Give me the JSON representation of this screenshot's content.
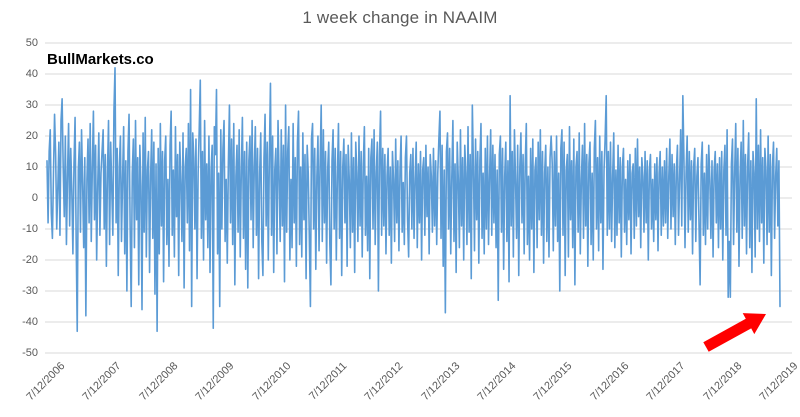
{
  "title": "1 week change in NAAIM",
  "watermark": "BullMarkets.co",
  "colors": {
    "background": "#FFFFFF",
    "series": "#5B9BD5",
    "grid": "#D9D9D9",
    "title_text": "#595959",
    "axis_text": "#595959",
    "watermark_text": "#000000",
    "arrow": "#FF0000"
  },
  "chart_data": {
    "type": "line",
    "title": "1 week change in NAAIM",
    "xlabel": "",
    "ylabel": "",
    "ylim": [
      -50,
      50
    ],
    "grid": true,
    "legend": false,
    "y_ticks": [
      50,
      40,
      30,
      20,
      10,
      0,
      -10,
      -20,
      -30,
      -40,
      -50
    ],
    "x_tick_labels": [
      "7/12/2006",
      "7/12/2007",
      "7/12/2008",
      "7/12/2009",
      "7/12/2010",
      "7/12/2011",
      "7/12/2012",
      "7/12/2013",
      "7/12/2014",
      "7/12/2015",
      "7/12/2016",
      "7/12/2017",
      "7/12/2018",
      "7/12/2019"
    ],
    "x_unit": "weeks",
    "annotation": {
      "shape": "block-arrow",
      "direction": "up-right",
      "color": "#FF0000",
      "points_to": "final week drop to about -35"
    },
    "values": [
      12,
      -8,
      15,
      22,
      -5,
      -13,
      8,
      27,
      14,
      -10,
      3,
      18,
      -12,
      25,
      32,
      10,
      -6,
      20,
      -15,
      7,
      24,
      -9,
      16,
      2,
      -18,
      11,
      26,
      -13,
      -43,
      9,
      18,
      -11,
      22,
      5,
      -16,
      13,
      -38,
      6,
      19,
      -8,
      24,
      -14,
      10,
      28,
      -7,
      17,
      -20,
      4,
      21,
      -12,
      8,
      15,
      22,
      -10,
      14,
      -22,
      8,
      25,
      -15,
      18,
      3,
      -12,
      28,
      42,
      -8,
      16,
      -25,
      10,
      20,
      -14,
      6,
      23,
      -18,
      12,
      -30,
      15,
      27,
      -9,
      -35,
      8,
      19,
      -16,
      25,
      -7,
      13,
      -28,
      17,
      4,
      -36,
      21,
      -11,
      26,
      -19,
      9,
      15,
      -24,
      7,
      22,
      -13,
      18,
      -31,
      11,
      -43,
      16,
      -18,
      24,
      -9,
      15,
      -27,
      12,
      20,
      -15,
      6,
      -22,
      17,
      28,
      -12,
      9,
      -19,
      23,
      -6,
      14,
      -25,
      18,
      5,
      -14,
      21,
      -29,
      10,
      16,
      -8,
      24,
      -17,
      35,
      -35,
      21,
      13,
      -10,
      19,
      -26,
      8,
      22,
      38,
      -13,
      15,
      -20,
      25,
      -7,
      11,
      -16,
      20,
      -24,
      9,
      17,
      -42,
      23,
      14,
      35,
      -18,
      8,
      -35,
      22,
      -10,
      16,
      25,
      -14,
      6,
      -21,
      11,
      30,
      -8,
      19,
      -15,
      24,
      -28,
      7,
      17,
      -11,
      22,
      -19,
      9,
      26,
      -13,
      15,
      -23,
      18,
      -29,
      12,
      20,
      -7,
      25,
      -16,
      10,
      23,
      -12,
      16,
      -26,
      8,
      21,
      -14,
      -25,
      13,
      27,
      -9,
      18,
      -20,
      14,
      37,
      -12,
      20,
      -24,
      9,
      16,
      -18,
      25,
      7,
      -14,
      22,
      -9,
      17,
      -27,
      30,
      -11,
      15,
      23,
      -20,
      6,
      -16,
      24,
      -8,
      13,
      -22,
      18,
      28,
      -15,
      10,
      -19,
      21,
      -7,
      14,
      -26,
      17,
      8,
      -13,
      -35,
      19,
      24,
      -10,
      16,
      -23,
      7,
      20,
      -17,
      11,
      30,
      -14,
      22,
      -8,
      15,
      -21,
      9,
      18,
      -15,
      -28,
      12,
      22,
      -10,
      16,
      -20,
      7,
      24,
      -13,
      15,
      -25,
      10,
      19,
      -8,
      14,
      -22,
      17,
      6,
      -16,
      21,
      -11,
      13,
      -24,
      18,
      8,
      -14,
      20,
      -9,
      15,
      -19,
      11,
      23,
      -12,
      7,
      -17,
      16,
      -26,
      13,
      19,
      -10,
      22,
      -15,
      8,
      18,
      -30,
      14,
      28,
      -12,
      16,
      -9,
      14,
      -18,
      7,
      16,
      -12,
      10,
      -21,
      15,
      6,
      -14,
      19,
      -8,
      12,
      -17,
      9,
      20,
      -11,
      5,
      -15,
      13,
      20,
      -7,
      -19,
      8,
      14,
      -10,
      16,
      -13,
      6,
      18,
      -16,
      11,
      -8,
      15,
      -20,
      9,
      13,
      -12,
      17,
      -6,
      10,
      -18,
      14,
      7,
      -11,
      16,
      -9,
      12,
      -15,
      8,
      19,
      28,
      -13,
      17,
      -22,
      9,
      -37,
      15,
      21,
      -10,
      16,
      -18,
      7,
      25,
      -14,
      11,
      -24,
      18,
      6,
      -16,
      22,
      -9,
      13,
      -20,
      17,
      8,
      -15,
      23,
      -11,
      14,
      -26,
      30,
      10,
      -17,
      19,
      -7,
      15,
      -21,
      12,
      24,
      -13,
      8,
      -18,
      16,
      -10,
      20,
      -15,
      7,
      22,
      -12,
      17,
      -8,
      14,
      -16,
      9,
      -33,
      14,
      20,
      -11,
      16,
      -23,
      7,
      18,
      -14,
      12,
      -27,
      33,
      -9,
      15,
      -19,
      22,
      6,
      -13,
      17,
      -25,
      10,
      21,
      -8,
      14,
      -18,
      11,
      24,
      -15,
      7,
      -20,
      16,
      -10,
      19,
      -24,
      9,
      13,
      -16,
      18,
      -7,
      22,
      -12,
      15,
      -21,
      8,
      17,
      -14,
      10,
      -19,
      13,
      20,
      11,
      -17,
      15,
      -9,
      20,
      -14,
      8,
      -30,
      16,
      22,
      -12,
      18,
      -25,
      9,
      14,
      -19,
      23,
      -7,
      12,
      -16,
      19,
      -28,
      10,
      15,
      -11,
      21,
      -18,
      6,
      17,
      -13,
      24,
      -9,
      14,
      -22,
      11,
      18,
      -15,
      8,
      -20,
      16,
      25,
      -10,
      13,
      -17,
      20,
      -8,
      15,
      -23,
      9,
      19,
      33,
      -12,
      15,
      -10,
      18,
      -14,
      7,
      21,
      -16,
      9,
      -12,
      17,
      -8,
      13,
      -19,
      10,
      16,
      -11,
      6,
      -15,
      12,
      -7,
      14,
      -18,
      8,
      11,
      -13,
      16,
      -9,
      19,
      -6,
      10,
      -16,
      13,
      7,
      -11,
      15,
      -8,
      12,
      -20,
      9,
      14,
      -10,
      6,
      -14,
      11,
      -7,
      13,
      -17,
      8,
      15,
      -12,
      10,
      -9,
      12,
      -8,
      16,
      -13,
      7,
      19,
      -10,
      14,
      -6,
      11,
      -15,
      9,
      17,
      -12,
      6,
      22,
      -9,
      33,
      13,
      -16,
      8,
      20,
      -11,
      15,
      -7,
      12,
      -18,
      10,
      16,
      -14,
      7,
      13,
      -9,
      -28,
      11,
      18,
      -12,
      8,
      -15,
      14,
      -10,
      17,
      6,
      -13,
      12,
      -19,
      9,
      15,
      -8,
      11,
      -16,
      13,
      -10,
      15,
      -20,
      9,
      17,
      -12,
      22,
      -32,
      -14,
      -32,
      11,
      19,
      -15,
      8,
      24,
      -11,
      16,
      -22,
      7,
      18,
      -13,
      25,
      -9,
      14,
      -18,
      10,
      21,
      -16,
      12,
      -24,
      15,
      8,
      -19,
      32,
      -10,
      17,
      -14,
      22,
      -8,
      13,
      -21,
      16,
      9,
      -15,
      20,
      -11,
      14,
      -25,
      10,
      18,
      -13,
      7,
      16,
      -9,
      12,
      -35
    ]
  }
}
